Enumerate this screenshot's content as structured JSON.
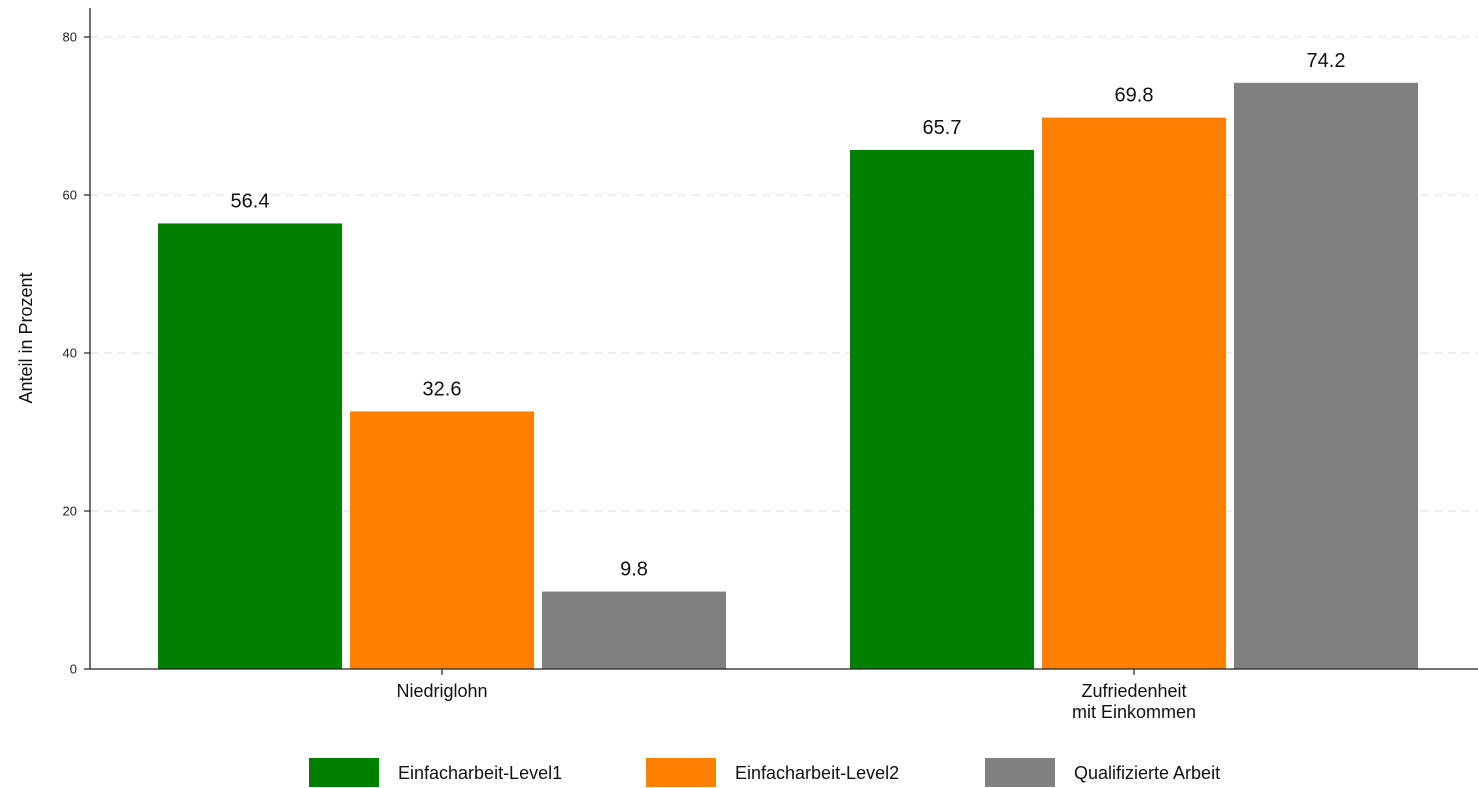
{
  "chart_data": {
    "type": "bar",
    "categories": [
      "Niedriglohn",
      "Zufriedenheit mit Einkommen"
    ],
    "category_lines": [
      [
        "Niedriglohn"
      ],
      [
        "Zufriedenheit",
        "mit Einkommen"
      ]
    ],
    "series": [
      {
        "name": "Einfacharbeit-Level1",
        "values": [
          56.4,
          65.7
        ],
        "labels": [
          "56.4",
          "65.7"
        ],
        "color": "#008000"
      },
      {
        "name": "Einfacharbeit-Level2",
        "values": [
          32.6,
          69.8
        ],
        "labels": [
          "32.6",
          "69.8"
        ],
        "color": "#ff8000"
      },
      {
        "name": "Qualifizierte Arbeit",
        "values": [
          9.8,
          74.2
        ],
        "labels": [
          "9.8",
          "74.2"
        ],
        "color": "#808080"
      }
    ],
    "title": "",
    "xlabel": "",
    "ylabel": "Anteil in Prozent",
    "ylim": [
      0,
      80
    ],
    "yticks": [
      0,
      20,
      40,
      60,
      80
    ],
    "ytick_labels": [
      "0",
      "20",
      "40",
      "60",
      "80"
    ],
    "grid": true,
    "legend_position": "bottom"
  }
}
